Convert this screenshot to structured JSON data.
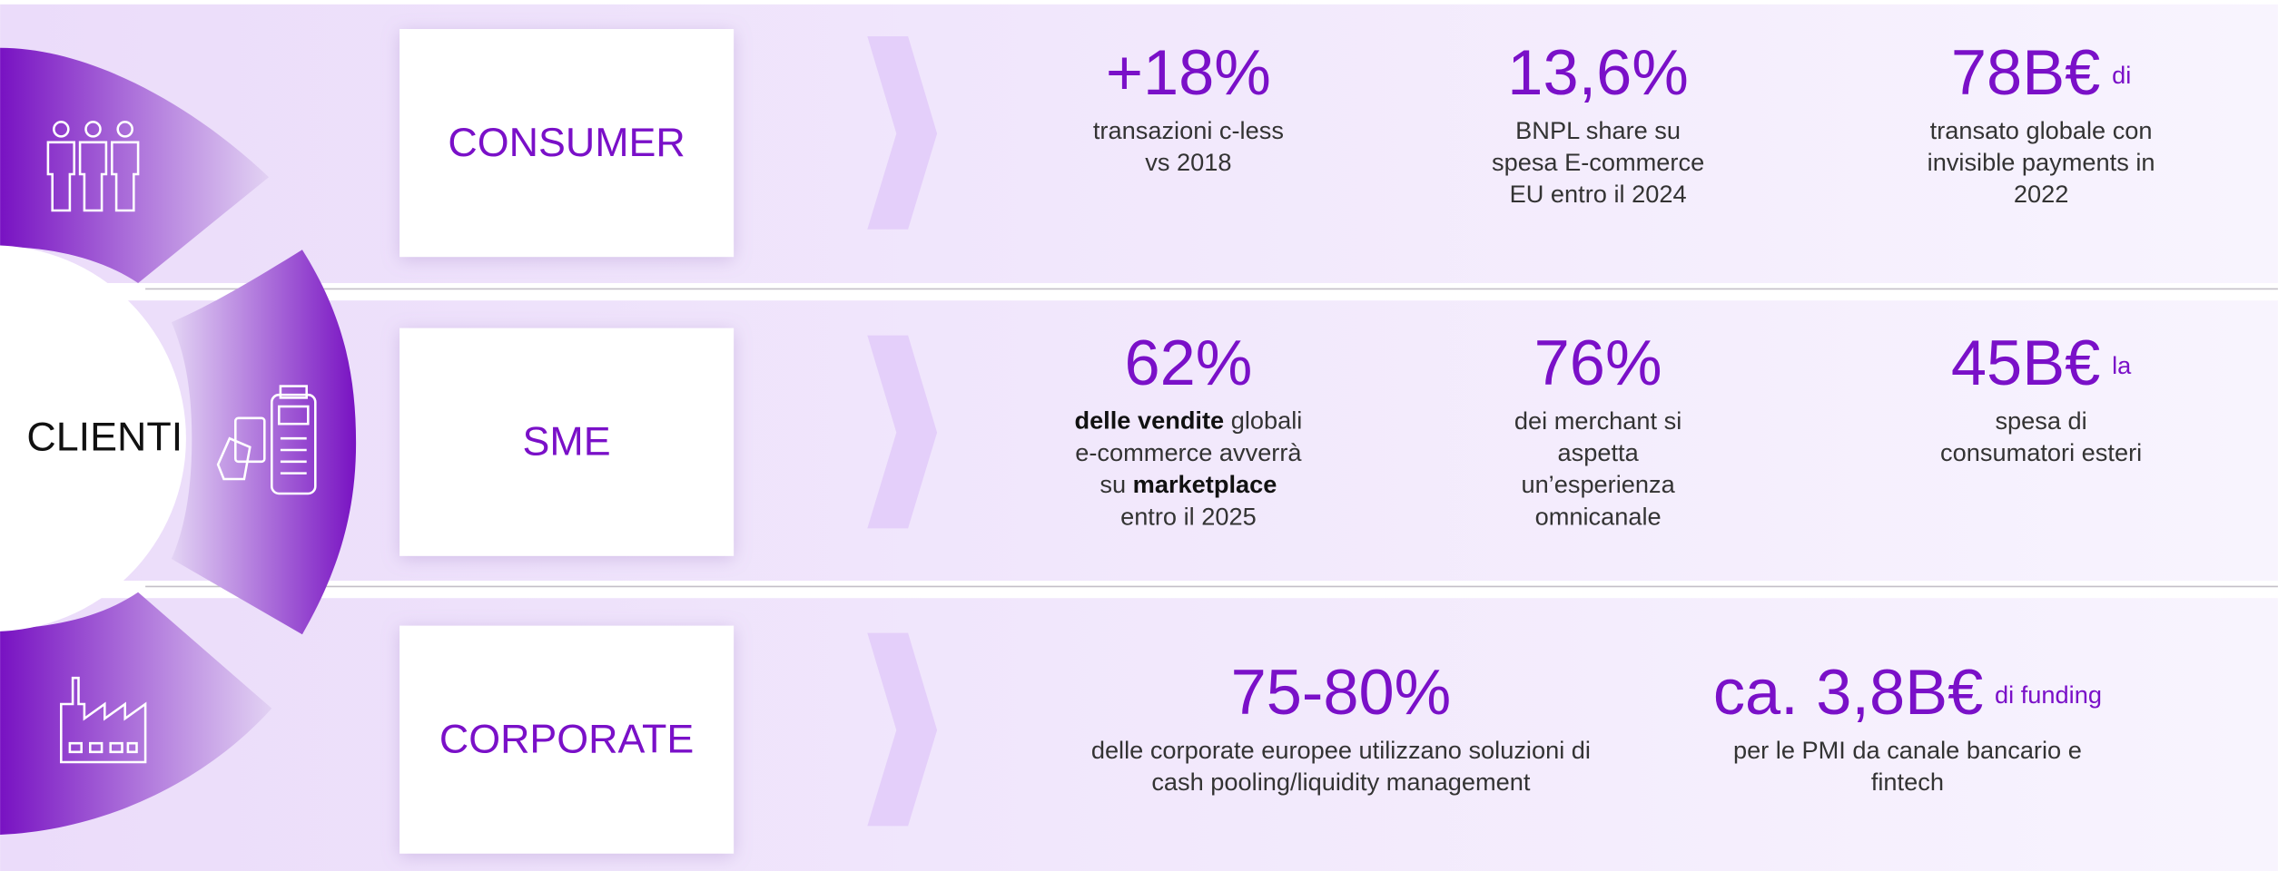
{
  "center_label": "CLIENTI",
  "segments": [
    {
      "label": "CONSUMER",
      "stats": [
        {
          "value": "+18%",
          "description": [
            "transazioni c-less",
            "vs 2018"
          ]
        },
        {
          "value": "13,6%",
          "description": [
            "BNPL share su",
            "spesa E-commerce",
            "EU entro il 2024"
          ]
        },
        {
          "value": "78B€",
          "suffix": "di",
          "description": [
            "transato globale con",
            "invisible payments in",
            "2022"
          ]
        }
      ]
    },
    {
      "label": "SME",
      "stats": [
        {
          "value": "62%",
          "description": [
            [
              {
                "text": "delle vendite",
                "bold": true
              },
              {
                "text": " globali"
              }
            ],
            "e-commerce avverrà",
            [
              {
                "text": "su "
              },
              {
                "text": "marketplace",
                "bold": true
              }
            ],
            "entro il 2025"
          ]
        },
        {
          "value": "76%",
          "description": [
            "dei merchant si",
            "aspetta",
            "un’esperienza",
            "omnicanale"
          ]
        },
        {
          "value": "45B€",
          "suffix": "la",
          "description": [
            "spesa di",
            "consumatori esteri"
          ]
        }
      ]
    },
    {
      "label": "CORPORATE",
      "stats": [
        {
          "value": "75-80%",
          "description": [
            "delle corporate europee utilizzano soluzioni di",
            "cash pooling/liquidity management"
          ]
        },
        {
          "value": "ca. 3,8B€",
          "suffix": "di funding",
          "description": [
            "per le PMI da canale bancario e",
            "fintech"
          ]
        }
      ]
    }
  ]
}
